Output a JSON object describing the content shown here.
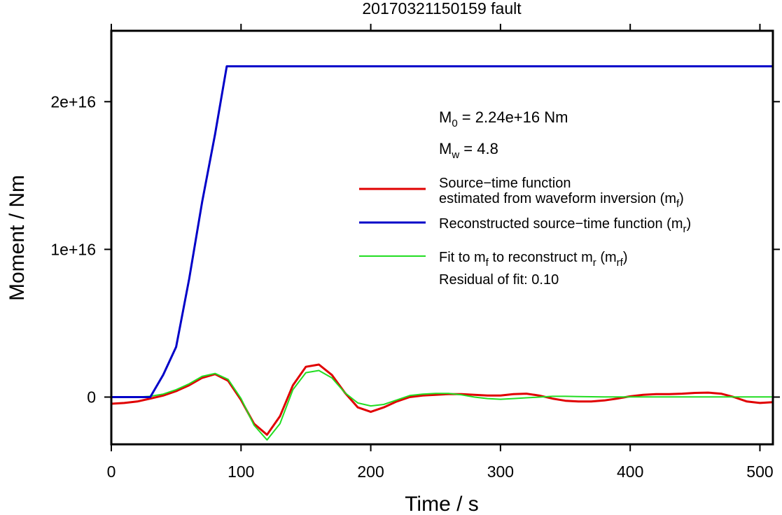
{
  "chart_data": {
    "type": "line",
    "title": "20170321150159 fault",
    "xlabel": "Time / s",
    "ylabel": "Moment / Nm",
    "xlim": [
      0,
      510
    ],
    "ylim": [
      -3200000000000000.0,
      2.48e+16
    ],
    "x_ticks": [
      {
        "value": 0,
        "label": "0"
      },
      {
        "value": 100,
        "label": "100"
      },
      {
        "value": 200,
        "label": "200"
      },
      {
        "value": 300,
        "label": "300"
      },
      {
        "value": 400,
        "label": "400"
      },
      {
        "value": 500,
        "label": "500"
      }
    ],
    "y_ticks": [
      {
        "value": 0,
        "label": "0"
      },
      {
        "value": 1e+16,
        "label": "1e+16"
      },
      {
        "value": 2e+16,
        "label": "2e+16"
      }
    ],
    "grid": false,
    "legend_position": "right",
    "annotations": {
      "m0": {
        "prefix": "M",
        "sub": "0",
        "suffix": " = 2.24e+16 Nm"
      },
      "mw": {
        "prefix": "M",
        "sub": "w",
        "suffix": " = 4.8"
      },
      "residual": "Residual of fit: 0.10"
    },
    "series": [
      {
        "color": "#e00000",
        "legend": [
          {
            "text": "Source−time function"
          },
          {
            "text": "estimated from waveform inversion (m",
            "sub": "f",
            "after": ")"
          }
        ],
        "x": [
          0,
          10,
          20,
          30,
          40,
          50,
          60,
          70,
          80,
          90,
          100,
          110,
          120,
          130,
          140,
          150,
          160,
          170,
          180,
          190,
          200,
          210,
          220,
          230,
          240,
          250,
          260,
          270,
          280,
          290,
          300,
          310,
          320,
          330,
          340,
          350,
          360,
          370,
          380,
          390,
          400,
          410,
          420,
          430,
          440,
          450,
          460,
          470,
          480,
          490,
          500,
          510
        ],
        "y": [
          -450000000000000.0,
          -400000000000000.0,
          -300000000000000.0,
          -100000000000000.0,
          100000000000000.0,
          400000000000000.0,
          800000000000000.0,
          1300000000000000.0,
          1550000000000000.0,
          1100000000000000.0,
          -200000000000000.0,
          -1800000000000000.0,
          -2550000000000000.0,
          -1300000000000000.0,
          800000000000000.0,
          2050000000000000.0,
          2200000000000000.0,
          1500000000000000.0,
          300000000000000.0,
          -700000000000000.0,
          -1000000000000000.0,
          -700000000000000.0,
          -300000000000000.0,
          0,
          100000000000000.0,
          150000000000000.0,
          200000000000000.0,
          200000000000000.0,
          150000000000000.0,
          100000000000000.0,
          100000000000000.0,
          200000000000000.0,
          230000000000000.0,
          100000000000000.0,
          -100000000000000.0,
          -250000000000000.0,
          -300000000000000.0,
          -300000000000000.0,
          -230000000000000.0,
          -100000000000000.0,
          50000000000000.0,
          150000000000000.0,
          200000000000000.0,
          200000000000000.0,
          230000000000000.0,
          280000000000000.0,
          300000000000000.0,
          230000000000000.0,
          0,
          -300000000000000.0,
          -400000000000000.0,
          -350000000000000.0
        ]
      },
      {
        "color": "#0000c8",
        "legend": [
          {
            "text": "Reconstructed source−time function (m",
            "sub": "r",
            "after": ")"
          }
        ],
        "x": [
          0,
          30,
          40,
          50,
          60,
          70,
          80,
          89,
          510
        ],
        "y": [
          0,
          0,
          1500000000000000.0,
          3400000000000000.0,
          8000000000000000.0,
          1.32e+16,
          1.78e+16,
          2.24e+16,
          2.24e+16
        ]
      },
      {
        "color": "#22dd22",
        "legend": [
          {
            "text": "Fit to m",
            "sub": "f",
            "after": " to reconstruct m",
            "sub2": "r",
            "after2": " (m",
            "sub3": "rf",
            "after3": ")"
          }
        ],
        "x": [
          0,
          10,
          20,
          30,
          40,
          50,
          60,
          70,
          80,
          90,
          100,
          110,
          120,
          130,
          140,
          150,
          160,
          170,
          180,
          190,
          200,
          210,
          220,
          230,
          240,
          250,
          260,
          270,
          280,
          290,
          300,
          310,
          320,
          330,
          340,
          350,
          360,
          370,
          380,
          390,
          400,
          410,
          420,
          430,
          440,
          450,
          460,
          470,
          480,
          490,
          500,
          510
        ],
        "y": [
          0,
          0,
          0,
          50000000000000.0,
          200000000000000.0,
          500000000000000.0,
          900000000000000.0,
          1400000000000000.0,
          1600000000000000.0,
          1200000000000000.0,
          -100000000000000.0,
          -1900000000000000.0,
          -2900000000000000.0,
          -1800000000000000.0,
          500000000000000.0,
          1650000000000000.0,
          1800000000000000.0,
          1300000000000000.0,
          300000000000000.0,
          -400000000000000.0,
          -600000000000000.0,
          -500000000000000.0,
          -200000000000000.0,
          100000000000000.0,
          200000000000000.0,
          250000000000000.0,
          250000000000000.0,
          150000000000000.0,
          0,
          -100000000000000.0,
          -150000000000000.0,
          -100000000000000.0,
          -50000000000000.0,
          0,
          50000000000000.0,
          50000000000000.0,
          30000000000000.0,
          20000000000000.0,
          10000000000000.0,
          10000000000000.0,
          10000000000000.0,
          10000000000000.0,
          10000000000000.0,
          10000000000000.0,
          10000000000000.0,
          10000000000000.0,
          10000000000000.0,
          10000000000000.0,
          10000000000000.0,
          10000000000000.0,
          10000000000000.0,
          10000000000000.0
        ]
      }
    ]
  }
}
